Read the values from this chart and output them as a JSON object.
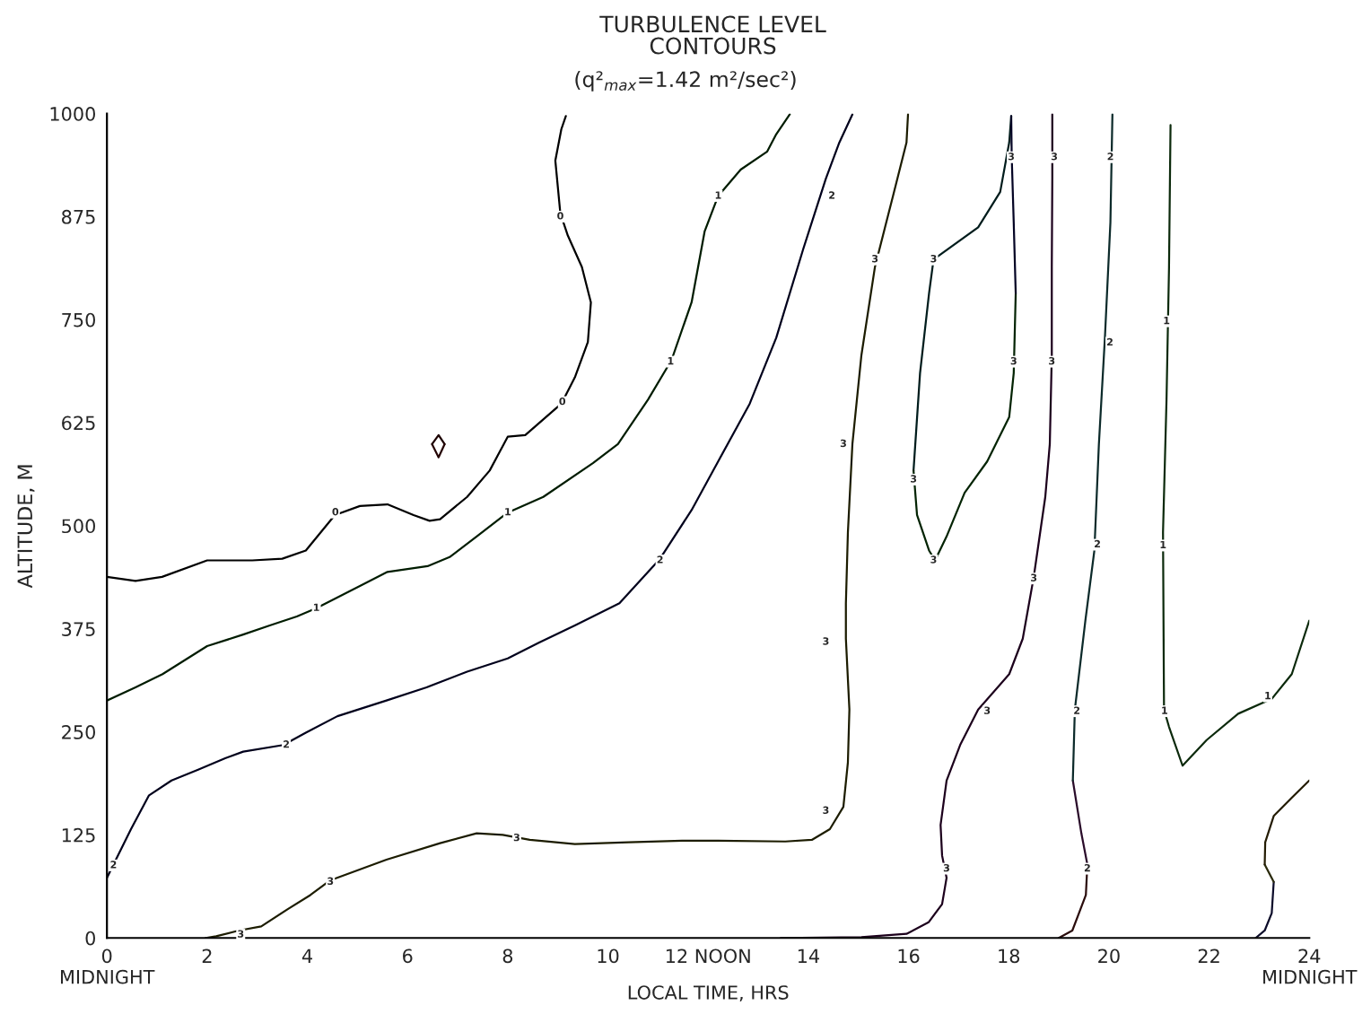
{
  "chart_data": {
    "type": "line",
    "title": "TURBULENCE LEVEL\nCONTOURS",
    "subtitle": "(q²$_{max}$=1.42 m²/sec²)",
    "xlabel": "LOCAL TIME, HRS",
    "ylabel": "ALTITUDE, M",
    "xlim": [
      0,
      24
    ],
    "ylim": [
      0,
      1000
    ],
    "xticks": [
      {
        "value": 0,
        "label": "0\nMIDNIGHT"
      },
      2,
      4,
      6,
      8,
      10,
      {
        "value": 12,
        "label": "12 NOON"
      },
      14,
      16,
      18,
      20,
      22,
      {
        "value": 24,
        "label": "24\nMIDNIGHT"
      }
    ],
    "yticks": [
      0,
      125,
      250,
      375,
      500,
      625,
      750,
      875,
      1000
    ],
    "grid": false,
    "legend": false,
    "marker": "none",
    "line_style": "solid",
    "series": [
      {
        "color": "#000000",
        "x": [
          0,
          0.57,
          1.1,
          2,
          2.9,
          3.5,
          3.97,
          4.55,
          5.05,
          5.6,
          6.12,
          6.44,
          6.65,
          7.19,
          7.64,
          8.0,
          8.35,
          9.07,
          9.34,
          9.6,
          9.66,
          9.48,
          9.2,
          9.05,
          8.95,
          9.07,
          9.16
        ],
        "values": [
          438,
          433,
          438,
          458,
          458,
          460,
          470,
          513,
          524,
          526,
          513,
          506,
          508,
          535,
          567,
          608,
          610,
          648,
          680,
          723,
          771,
          814,
          852,
          879,
          943,
          981,
          997
        ]
      },
      {
        "color": "#1c0000",
        "x": [
          6.49,
          6.62,
          6.74
        ],
        "values": [
          599,
          610,
          599
        ]
      },
      {
        "color": "#240404",
        "x": [
          6.49,
          6.62,
          6.74
        ],
        "values": [
          599,
          583,
          599
        ]
      },
      {
        "color": "#001c00",
        "x": [
          0,
          0.57,
          1.11,
          2,
          2.72,
          3.25,
          3.79,
          4.18,
          5.05,
          5.6,
          6.4,
          6.84,
          7.38,
          8.0,
          8.71,
          9.7,
          10.2,
          10.8,
          11.27,
          11.67,
          11.93,
          12.2,
          12.65,
          13.18,
          13.36,
          13.63
        ],
        "values": [
          288,
          304,
          320,
          354,
          368,
          379,
          390,
          400,
          427,
          444,
          451,
          462,
          487,
          516,
          535,
          576,
          599,
          653,
          701,
          771,
          857,
          900,
          932,
          954,
          975,
          999
        ]
      },
      {
        "color": "#00001c",
        "x": [
          0,
          0.13,
          0.48,
          0.84,
          1.29,
          1.82,
          2.36,
          2.72,
          3.52,
          3.97,
          4.6,
          5.58,
          6.38,
          7.19,
          8.0,
          8.62,
          9.34,
          10.23,
          11.04,
          11.67,
          12.2,
          12.83,
          13.36,
          13.9,
          14.35,
          14.62,
          14.88
        ],
        "values": [
          73,
          89,
          132,
          173,
          191,
          204,
          218,
          226,
          234,
          249,
          269,
          288,
          304,
          323,
          339,
          358,
          379,
          406,
          460,
          519,
          578,
          648,
          728,
          836,
          921,
          965,
          999
        ]
      },
      {
        "color": "#1c1c00",
        "x": [
          1.97,
          2.18,
          2.63,
          3.08,
          3.61,
          4.06,
          4.46,
          5.58,
          6.65,
          7.38,
          7.9,
          8.44,
          9.34,
          10.41,
          11.48,
          12.2,
          13.54,
          14.07,
          14.43,
          14.7,
          14.79,
          14.82,
          14.75,
          14.75,
          14.79,
          14.88,
          15.06,
          15.33,
          15.69,
          15.96,
          15.99
        ],
        "values": [
          0,
          2,
          9,
          14,
          35,
          52,
          70,
          95,
          115,
          127,
          125,
          119,
          114,
          116,
          118,
          118,
          117,
          119,
          132,
          159,
          213,
          277,
          363,
          406,
          492,
          599,
          707,
          814,
          900,
          965,
          999
        ]
      },
      {
        "color": "#1c001c",
        "x": [
          13.45,
          15.06,
          15.96,
          16.4,
          16.67,
          16.76,
          16.67,
          16.64,
          16.76,
          17.03,
          17.39,
          18.01,
          18.28,
          18.5,
          18.73,
          18.82,
          18.86,
          18.86,
          18.87,
          18.87
        ],
        "values": [
          0,
          1,
          5,
          19,
          41,
          73,
          100,
          137,
          191,
          234,
          277,
          320,
          363,
          438,
          535,
          599,
          707,
          814,
          922,
          999
        ]
      },
      {
        "color": "#001c1c",
        "x": [
          18.05,
          18.01,
          17.83,
          17.39,
          16.5,
          16.41,
          16.23,
          16.1
        ],
        "values": [
          997,
          965,
          905,
          862,
          823,
          782,
          685,
          567
        ]
      },
      {
        "color": "#042404",
        "x": [
          16.1,
          16.17,
          16.41,
          16.53,
          16.76,
          17.12,
          17.57,
          18.01,
          18.1,
          18.14
        ],
        "values": [
          567,
          513,
          470,
          458,
          487,
          540,
          578,
          632,
          685,
          782
        ]
      },
      {
        "color": "#040424",
        "x": [
          18.14,
          18.1,
          18.06,
          18.05
        ],
        "values": [
          782,
          868,
          948,
          997
        ]
      },
      {
        "color": "#2a0c0c",
        "x": [
          19.0,
          19.27,
          19.54,
          19.57
        ],
        "values": [
          0,
          9,
          52,
          89
        ]
      },
      {
        "color": "#2a0c2a",
        "x": [
          19.57,
          19.45,
          19.28
        ],
        "values": [
          89,
          127,
          191
        ]
      },
      {
        "color": "#0c2a2a",
        "x": [
          19.28,
          19.32,
          19.53,
          19.71,
          19.8,
          19.92,
          20.03,
          20.07
        ],
        "values": [
          191,
          277,
          385,
          470,
          599,
          728,
          868,
          999
        ]
      },
      {
        "color": "#0c2a0c",
        "x": [
          21.23,
          21.2,
          21.15,
          21.08,
          21.1,
          21.2,
          21.47,
          21.95,
          22.58,
          23.25,
          23.65,
          24
        ],
        "values": [
          986,
          814,
          653,
          492,
          277,
          256,
          209,
          240,
          272,
          290,
          320,
          385
        ]
      },
      {
        "color": "#0c0c2a",
        "x": [
          22.93,
          23.11,
          23.25,
          23.29
        ],
        "values": [
          0,
          9,
          30,
          68
        ]
      },
      {
        "color": "#2a2a0c",
        "x": [
          23.29,
          23.11
        ],
        "values": [
          68,
          89
        ]
      },
      {
        "color": "#241c04",
        "x": [
          23.11,
          23.12,
          23.29,
          23.65,
          24
        ],
        "values": [
          89,
          116,
          148,
          170,
          191
        ]
      }
    ],
    "annotations": [
      {
        "text": "0",
        "x": 9.05,
        "y": 875
      },
      {
        "text": "0",
        "x": 9.09,
        "y": 650
      },
      {
        "text": "0",
        "x": 4.56,
        "y": 516
      },
      {
        "text": "1",
        "x": 12.2,
        "y": 900
      },
      {
        "text": "1",
        "x": 11.25,
        "y": 699
      },
      {
        "text": "1",
        "x": 8.0,
        "y": 516
      },
      {
        "text": "1",
        "x": 4.18,
        "y": 400
      },
      {
        "text": "1",
        "x": 21.15,
        "y": 748
      },
      {
        "text": "1",
        "x": 21.08,
        "y": 476
      },
      {
        "text": "1",
        "x": 21.11,
        "y": 275
      },
      {
        "text": "1",
        "x": 23.17,
        "y": 293
      },
      {
        "text": "2",
        "x": 14.47,
        "y": 900
      },
      {
        "text": "2",
        "x": 11.04,
        "y": 458
      },
      {
        "text": "2",
        "x": 3.58,
        "y": 234
      },
      {
        "text": "2",
        "x": 0.13,
        "y": 88
      },
      {
        "text": "2",
        "x": 20.03,
        "y": 947
      },
      {
        "text": "2",
        "x": 20.02,
        "y": 722
      },
      {
        "text": "2",
        "x": 19.77,
        "y": 477
      },
      {
        "text": "2",
        "x": 19.36,
        "y": 275
      },
      {
        "text": "2",
        "x": 19.57,
        "y": 84
      },
      {
        "text": "3",
        "x": 15.33,
        "y": 823
      },
      {
        "text": "3",
        "x": 14.7,
        "y": 599
      },
      {
        "text": "3",
        "x": 14.35,
        "y": 359
      },
      {
        "text": "3",
        "x": 14.35,
        "y": 154
      },
      {
        "text": "3",
        "x": 8.18,
        "y": 121
      },
      {
        "text": "3",
        "x": 4.46,
        "y": 68
      },
      {
        "text": "3",
        "x": 2.67,
        "y": 4
      },
      {
        "text": "3",
        "x": 16.76,
        "y": 84
      },
      {
        "text": "3",
        "x": 17.57,
        "y": 275
      },
      {
        "text": "3",
        "x": 18.5,
        "y": 436
      },
      {
        "text": "3",
        "x": 18.91,
        "y": 947
      },
      {
        "text": "3",
        "x": 18.86,
        "y": 699
      },
      {
        "text": "3",
        "x": 18.05,
        "y": 947
      },
      {
        "text": "3",
        "x": 18.1,
        "y": 699
      },
      {
        "text": "3",
        "x": 16.5,
        "y": 823
      },
      {
        "text": "3",
        "x": 16.1,
        "y": 556
      },
      {
        "text": "3",
        "x": 16.5,
        "y": 458
      }
    ]
  }
}
